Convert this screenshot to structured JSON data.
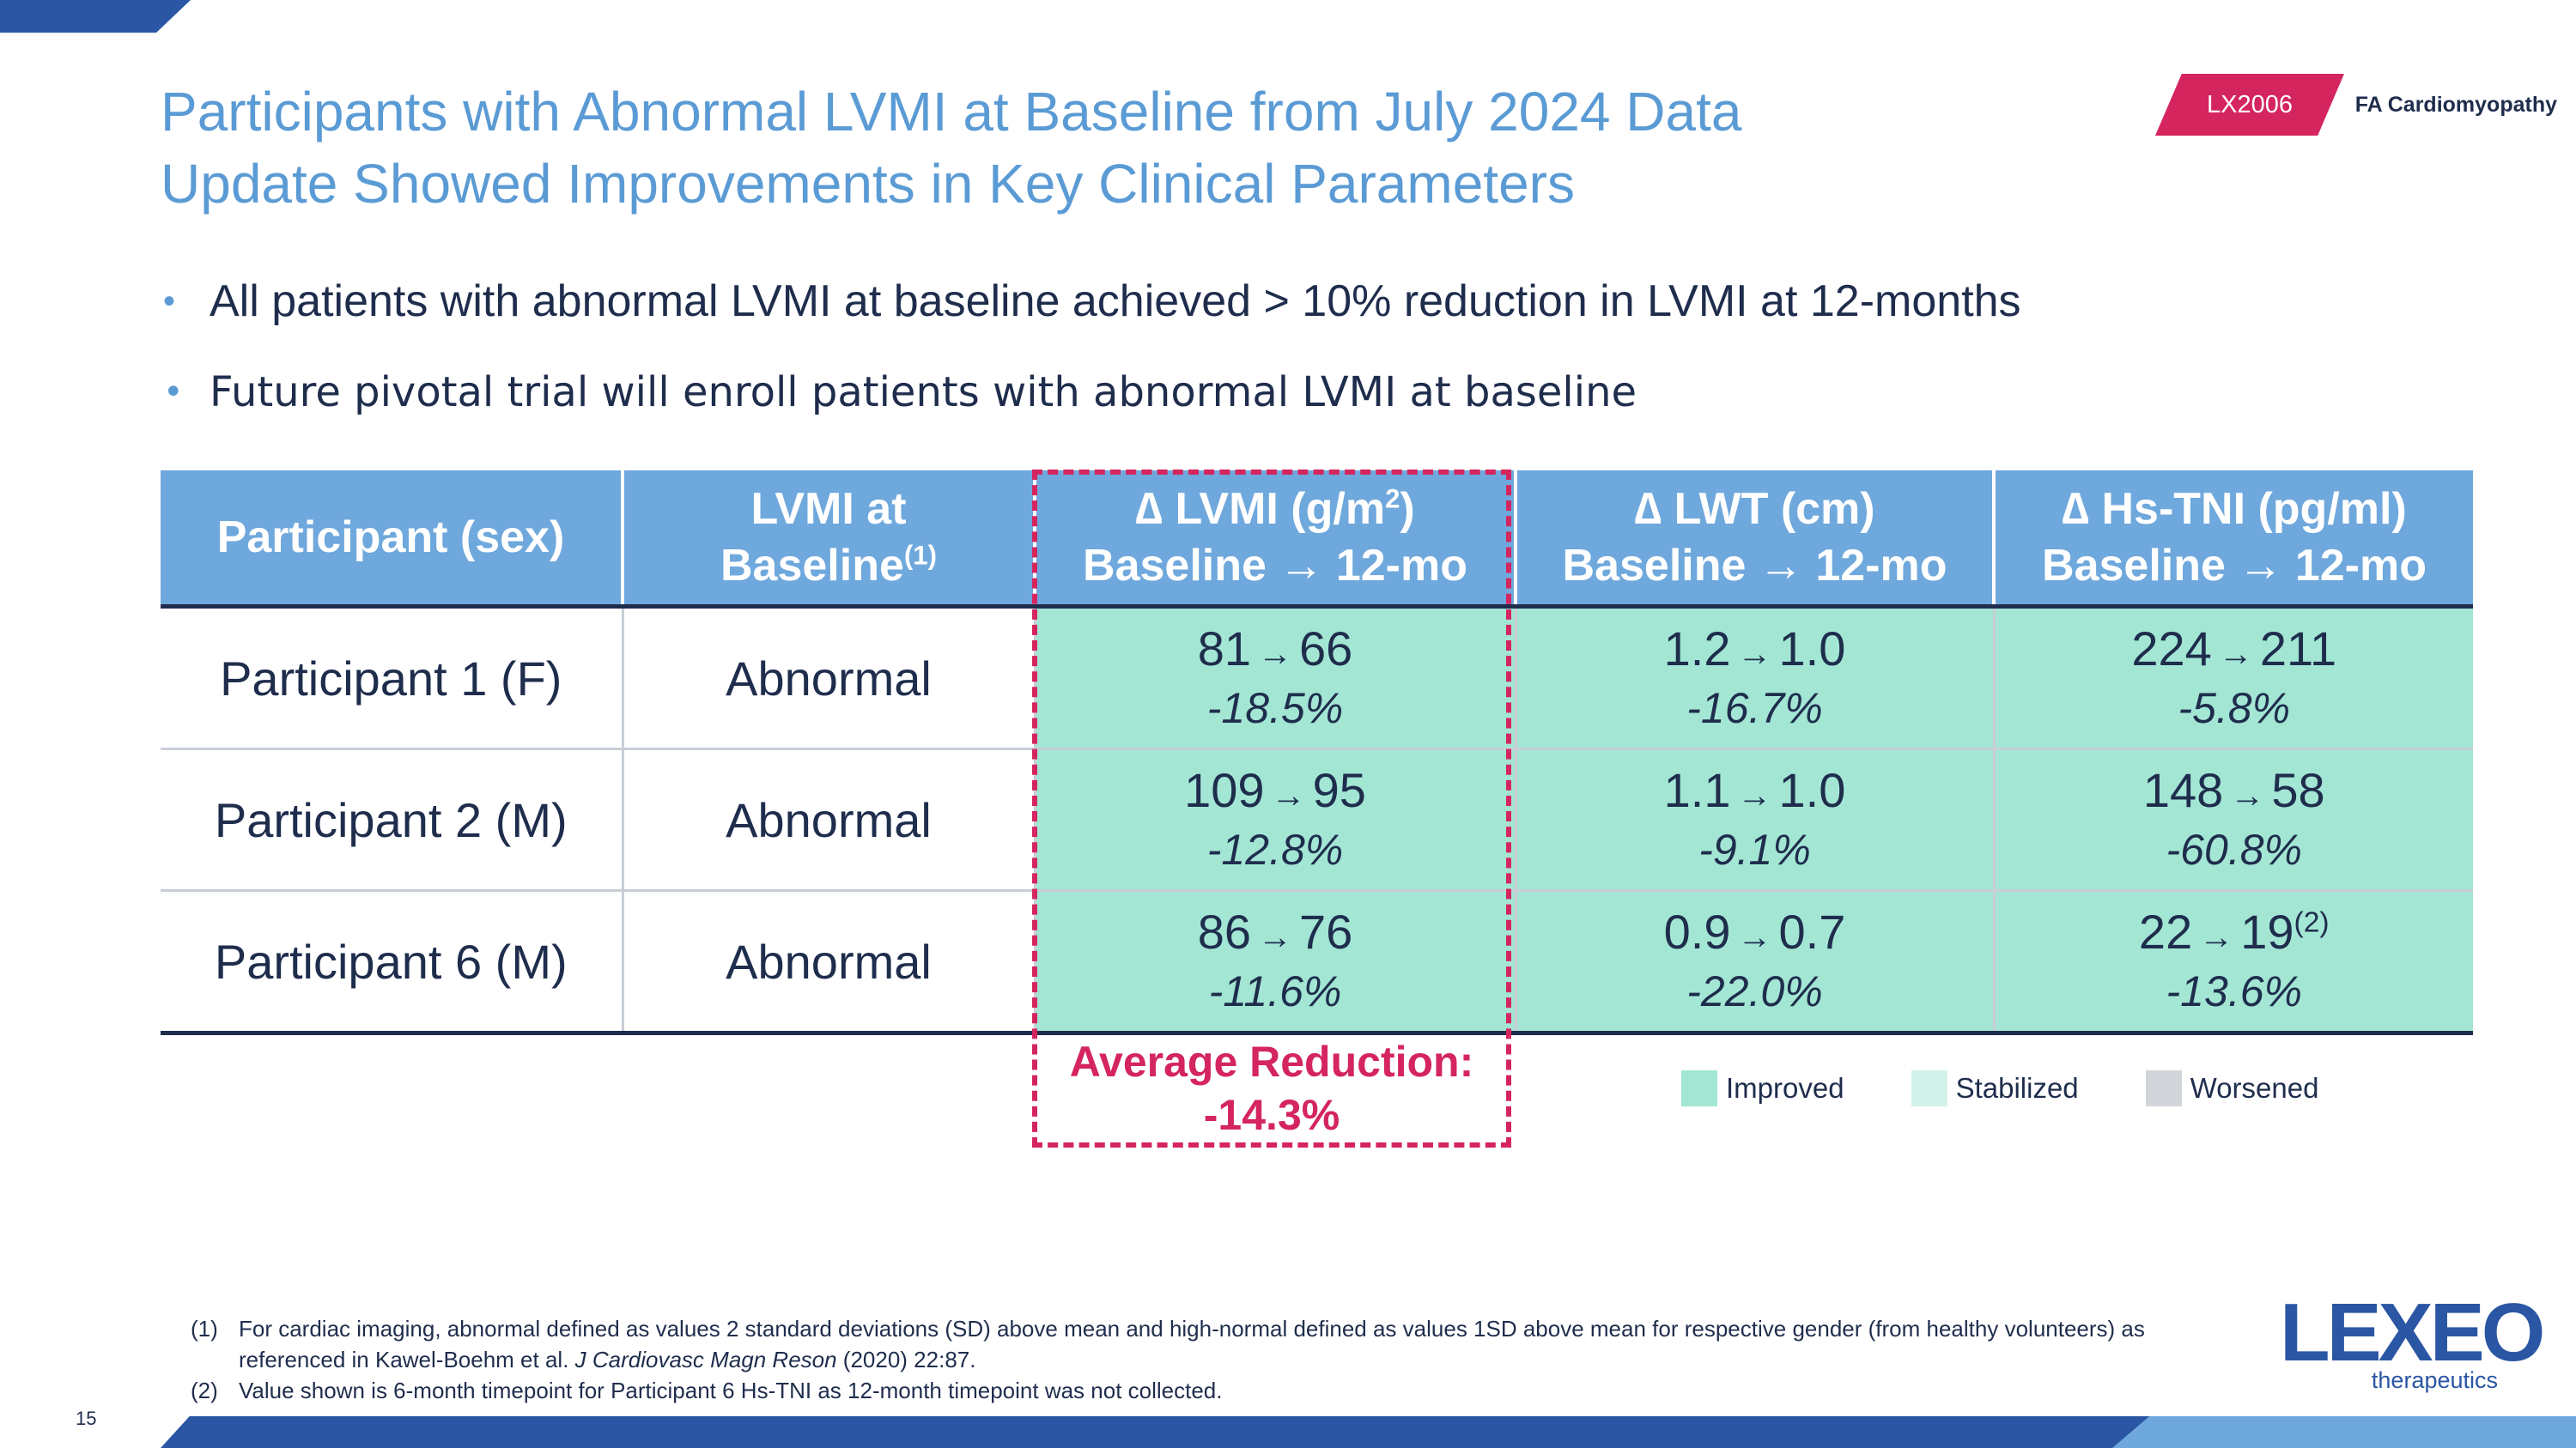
{
  "header": {
    "title_line1": "Participants with Abnormal LVMI at Baseline from July 2024 Data",
    "title_line2": "Update Showed Improvements in Key Clinical Parameters",
    "program_tag": "LX2006",
    "topic_tag": "FA Cardiomyopathy"
  },
  "bullets": [
    "All patients with abnormal LVMI at baseline achieved > 10% reduction in LVMI at 12-months",
    "Future pivotal trial will enroll patients with abnormal LVMI at baseline"
  ],
  "table": {
    "headers": {
      "participant": "Participant (sex)",
      "lvmi_line1": "LVMI at",
      "lvmi_line2": "Baseline",
      "lvmi_note": "(1)",
      "dlvmi_line1": "∆ LVMI (g/m",
      "dlvmi_sup": "2",
      "dlvmi_close": ")",
      "dlwt_line1": "∆ LWT (cm)",
      "dhstni_line1": "∆ Hs-TNI (pg/ml)",
      "timeframe_baseline": "Baseline",
      "timeframe_arrow": "→",
      "timeframe_end": "12-mo"
    },
    "rows": [
      {
        "participant": "Participant 1 (F)",
        "lvmi_status": "Abnormal",
        "lvmi": {
          "from": "81",
          "to": "66",
          "pct": "-18.5%"
        },
        "lwt": {
          "from": "1.2",
          "to": "1.0",
          "pct": "-16.7%"
        },
        "hstni": {
          "from": "224",
          "to": "211",
          "note": "",
          "pct": "-5.8%"
        }
      },
      {
        "participant": "Participant 2 (M)",
        "lvmi_status": "Abnormal",
        "lvmi": {
          "from": "109",
          "to": "95",
          "pct": "-12.8%"
        },
        "lwt": {
          "from": "1.1",
          "to": "1.0",
          "pct": "-9.1%"
        },
        "hstni": {
          "from": "148",
          "to": "58",
          "note": "",
          "pct": "-60.8%"
        }
      },
      {
        "participant": "Participant 6 (M)",
        "lvmi_status": "Abnormal",
        "lvmi": {
          "from": "86",
          "to": "76",
          "pct": "-11.6%"
        },
        "lwt": {
          "from": "0.9",
          "to": "0.7",
          "pct": "-22.0%"
        },
        "hstni": {
          "from": "22",
          "to": "19",
          "note": "(2)",
          "pct": "-13.6%"
        }
      }
    ],
    "arrow": "→"
  },
  "average": {
    "label": "Average Reduction:",
    "value": "-14.3%"
  },
  "legend": [
    {
      "label": "Improved",
      "color": "#a3e6d4"
    },
    {
      "label": "Stabilized",
      "color": "#d3f2ea"
    },
    {
      "label": "Worsened",
      "color": "#d2d6db"
    }
  ],
  "footnotes": [
    {
      "num": "(1)",
      "text_a": "For cardiac imaging, abnormal defined as values 2 standard deviations (SD) above mean and high-normal defined as values 1SD above mean for respective gender (from healthy volunteers) as referenced in Kawel‑Boehm et al. ",
      "text_journal": "J Cardiovasc Magn Reson",
      "text_b": " (2020) 22:87."
    },
    {
      "num": "(2)",
      "text_a": "Value shown is 6-month timepoint for Participant 6 Hs-TNI as 12-month timepoint was not collected.",
      "text_journal": "",
      "text_b": ""
    }
  ],
  "page_number": "15",
  "logo": {
    "word": "LEXEO",
    "sub": "therapeutics"
  },
  "colors": {
    "accent_blue": "#2a56a4",
    "header_blue": "#6fa8dc",
    "title_blue": "#5b9bd5",
    "magenta": "#d4255f",
    "improved": "#a3e6d4"
  }
}
